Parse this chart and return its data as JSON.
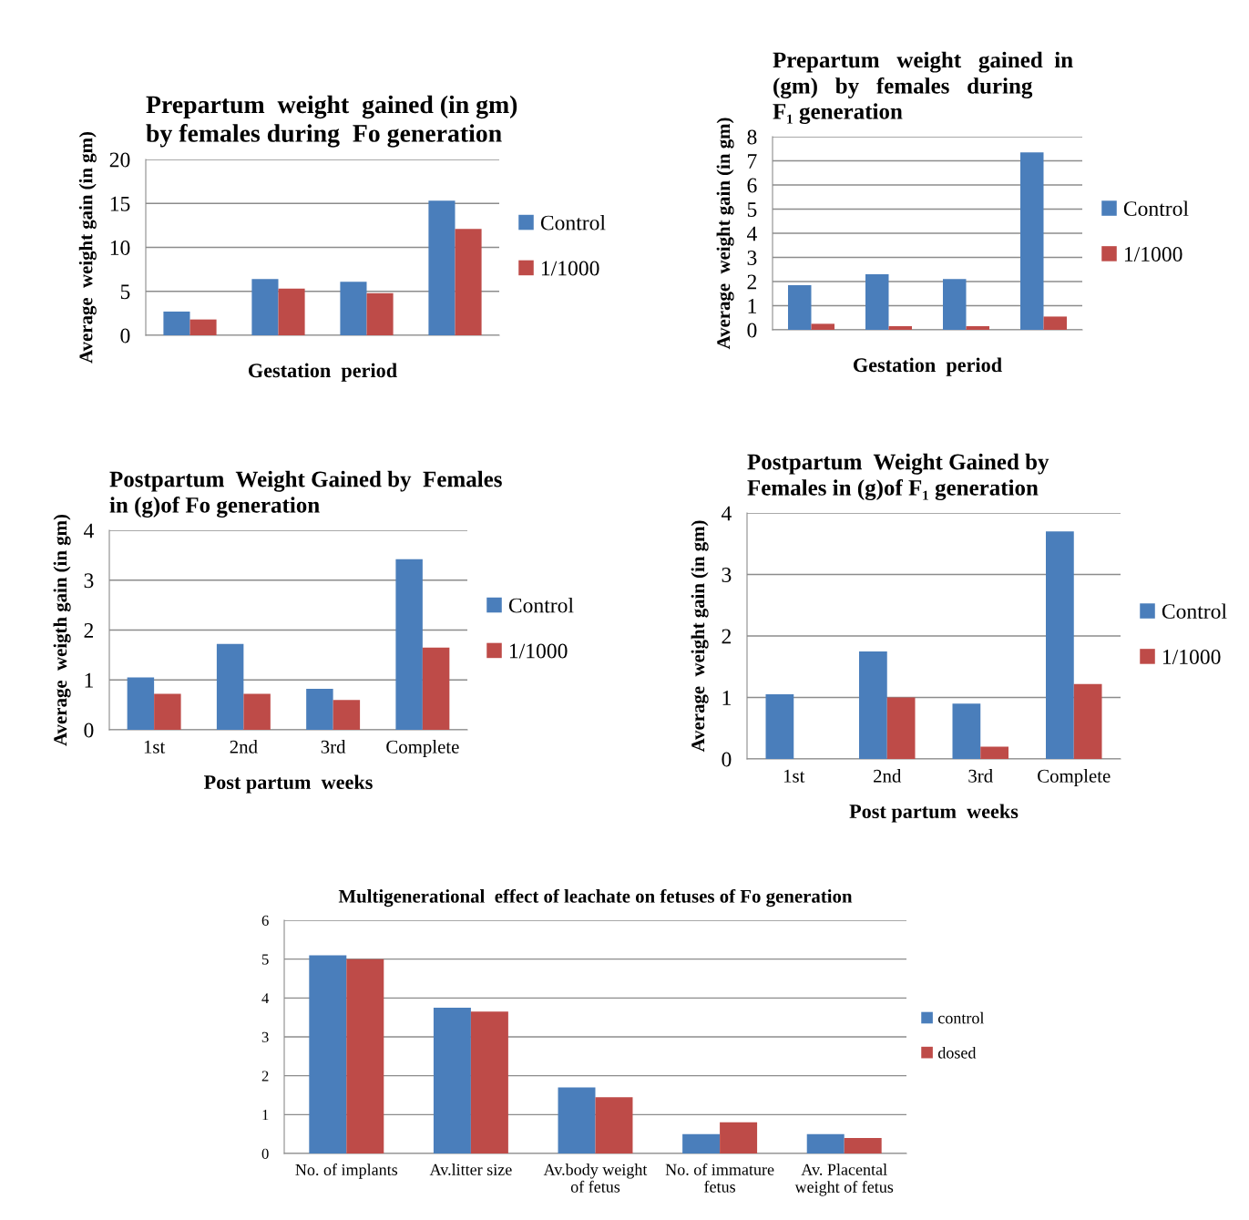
{
  "chart_data": [
    {
      "type": "bar",
      "title": "Prepartum  weight  gained (in gm)\nby females during  Fo generation",
      "xlabel": "Gestation  period",
      "ylabel": "Average  weight gain (in gm)",
      "categories": [
        null,
        null,
        null,
        null
      ],
      "series": [
        {
          "name": "Control",
          "color": "#4a7ebb",
          "values": [
            2.7,
            6.4,
            6.1,
            15.3
          ]
        },
        {
          "name": "1/1000",
          "color": "#be4b48",
          "values": [
            1.8,
            5.3,
            4.8,
            12.1
          ]
        }
      ],
      "ylim": [
        0,
        20
      ],
      "yticks": [
        0,
        5,
        10,
        15,
        20
      ],
      "grid": "y",
      "legend": "right"
    },
    {
      "type": "bar",
      "title": "Prepartum   weight   gained  in\n(gm)   by   females   during\nF₁ generation",
      "xlabel": "Gestation  period",
      "ylabel": "Average  weight gain (in gm)",
      "categories": [
        null,
        null,
        null,
        null
      ],
      "series": [
        {
          "name": "Control",
          "color": "#4a7ebb",
          "values": [
            1.85,
            2.3,
            2.1,
            7.35
          ]
        },
        {
          "name": "1/1000",
          "color": "#be4b48",
          "values": [
            0.25,
            0.15,
            0.15,
            0.55
          ]
        }
      ],
      "ylim": [
        0,
        8
      ],
      "yticks": [
        0,
        1,
        2,
        3,
        4,
        5,
        6,
        7,
        8
      ],
      "grid": "y",
      "legend": "right"
    },
    {
      "type": "bar",
      "title": "Postpartum  Weight Gained by  Females\nin (g)of Fo generation",
      "xlabel": "Post partum  weeks",
      "ylabel": "Average  weigth gain (in gm)",
      "categories": [
        "1st",
        "2nd",
        "3rd",
        "Complete"
      ],
      "series": [
        {
          "name": "Control",
          "color": "#4a7ebb",
          "values": [
            1.05,
            1.72,
            0.82,
            3.42
          ]
        },
        {
          "name": "1/1000",
          "color": "#be4b48",
          "values": [
            0.72,
            0.72,
            0.6,
            1.65
          ]
        }
      ],
      "ylim": [
        0,
        4
      ],
      "yticks": [
        0,
        1,
        2,
        3,
        4
      ],
      "grid": "y",
      "legend": "right"
    },
    {
      "type": "bar",
      "title": "Postpartum  Weight Gained by\nFemales in (g)of F₁ generation",
      "xlabel": "Post partum  weeks",
      "ylabel": "Average  weight gain (in gm)",
      "categories": [
        "1st",
        "2nd",
        "3rd",
        "Complete"
      ],
      "series": [
        {
          "name": "Control",
          "color": "#4a7ebb",
          "values": [
            1.05,
            1.75,
            0.9,
            3.7
          ]
        },
        {
          "name": "1/1000",
          "color": "#be4b48",
          "values": [
            0,
            1.0,
            0.2,
            1.22
          ]
        }
      ],
      "ylim": [
        0,
        4
      ],
      "yticks": [
        0,
        1,
        2,
        3,
        4
      ],
      "grid": "y",
      "legend": "right"
    },
    {
      "type": "bar",
      "title": "Multigenerational  effect of leachate on fetuses of Fo generation",
      "categories": [
        "No. of implants",
        "Av.litter size",
        "Av.body weight\nof fetus",
        "No. of immature\nfetus",
        "Av. Placental\nweight of fetus"
      ],
      "series": [
        {
          "name": "control",
          "color": "#4a7ebb",
          "values": [
            5.1,
            3.75,
            1.7,
            0.5,
            0.5
          ]
        },
        {
          "name": "dosed",
          "color": "#be4b48",
          "values": [
            5.0,
            3.65,
            1.45,
            0.8,
            0.4
          ]
        }
      ],
      "ylim": [
        0,
        6
      ],
      "yticks": [
        0,
        1,
        2,
        3,
        4,
        5,
        6
      ],
      "grid": "y",
      "legend": "right"
    }
  ]
}
